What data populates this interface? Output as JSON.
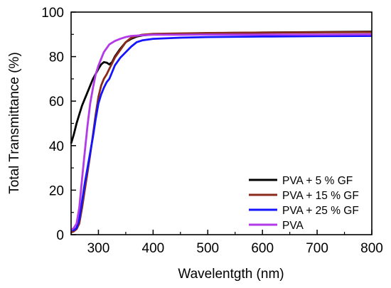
{
  "chart_data": {
    "type": "line",
    "xlabel": "Wavelentgth (nm)",
    "ylabel": "Total Transmittance (%)",
    "xlim": [
      250,
      800
    ],
    "ylim": [
      0,
      100
    ],
    "x_ticks": [
      300,
      400,
      500,
      600,
      700,
      800
    ],
    "y_ticks": [
      0,
      20,
      40,
      60,
      80,
      100
    ],
    "grid": false,
    "legend_position": "bottom-right",
    "series": [
      {
        "name": "PVA + 5 % GF",
        "color": "#000000",
        "points": [
          [
            250,
            41
          ],
          [
            255,
            45
          ],
          [
            260,
            50
          ],
          [
            265,
            54
          ],
          [
            270,
            58
          ],
          [
            280,
            64
          ],
          [
            290,
            70
          ],
          [
            300,
            74.5
          ],
          [
            305,
            76.5
          ],
          [
            310,
            77.5
          ],
          [
            315,
            77.3
          ],
          [
            320,
            76.5
          ],
          [
            325,
            77.5
          ],
          [
            330,
            80
          ],
          [
            340,
            83.5
          ],
          [
            350,
            86.5
          ],
          [
            360,
            88
          ],
          [
            370,
            89
          ],
          [
            380,
            89.5
          ],
          [
            400,
            90
          ],
          [
            450,
            90.3
          ],
          [
            500,
            90.5
          ],
          [
            600,
            90.8
          ],
          [
            700,
            91
          ],
          [
            800,
            91.2
          ]
        ]
      },
      {
        "name": "PVA + 15 % GF",
        "color": "#8b2a1a",
        "points": [
          [
            250,
            1
          ],
          [
            255,
            1.5
          ],
          [
            260,
            2.5
          ],
          [
            265,
            5
          ],
          [
            270,
            12
          ],
          [
            275,
            20
          ],
          [
            280,
            28
          ],
          [
            285,
            36
          ],
          [
            290,
            45
          ],
          [
            295,
            54
          ],
          [
            300,
            62
          ],
          [
            305,
            67
          ],
          [
            310,
            70
          ],
          [
            315,
            72
          ],
          [
            320,
            74.5
          ],
          [
            325,
            77
          ],
          [
            330,
            79.5
          ],
          [
            340,
            83
          ],
          [
            350,
            86.5
          ],
          [
            360,
            88.5
          ],
          [
            370,
            89.3
          ],
          [
            380,
            89.8
          ],
          [
            400,
            90.2
          ],
          [
            450,
            90.4
          ],
          [
            500,
            90.6
          ],
          [
            600,
            90.8
          ],
          [
            700,
            90.9
          ],
          [
            800,
            91
          ]
        ]
      },
      {
        "name": "PVA + 25 % GF",
        "color": "#1414ff",
        "points": [
          [
            250,
            2
          ],
          [
            255,
            2
          ],
          [
            260,
            3
          ],
          [
            265,
            7
          ],
          [
            270,
            15
          ],
          [
            275,
            23
          ],
          [
            280,
            30
          ],
          [
            285,
            37
          ],
          [
            290,
            44
          ],
          [
            295,
            52
          ],
          [
            300,
            59
          ],
          [
            305,
            63
          ],
          [
            310,
            66
          ],
          [
            315,
            68.5
          ],
          [
            320,
            70
          ],
          [
            325,
            73
          ],
          [
            330,
            76
          ],
          [
            340,
            79.5
          ],
          [
            350,
            82
          ],
          [
            360,
            84.5
          ],
          [
            370,
            86.5
          ],
          [
            380,
            87.3
          ],
          [
            400,
            88
          ],
          [
            450,
            88.5
          ],
          [
            500,
            88.8
          ],
          [
            600,
            89
          ],
          [
            700,
            89.2
          ],
          [
            800,
            89.3
          ]
        ]
      },
      {
        "name": "PVA",
        "color": "#b23ae8",
        "points": [
          [
            250,
            2
          ],
          [
            255,
            3
          ],
          [
            260,
            5
          ],
          [
            265,
            12
          ],
          [
            270,
            25
          ],
          [
            275,
            37
          ],
          [
            280,
            49
          ],
          [
            285,
            59
          ],
          [
            290,
            66
          ],
          [
            295,
            72
          ],
          [
            300,
            76
          ],
          [
            310,
            82
          ],
          [
            320,
            85.5
          ],
          [
            330,
            87
          ],
          [
            340,
            88
          ],
          [
            350,
            88.8
          ],
          [
            360,
            89.3
          ],
          [
            380,
            89.6
          ],
          [
            400,
            89.8
          ],
          [
            450,
            89.8
          ],
          [
            500,
            89.9
          ],
          [
            600,
            89.9
          ],
          [
            700,
            89.9
          ],
          [
            800,
            90
          ]
        ]
      }
    ]
  }
}
